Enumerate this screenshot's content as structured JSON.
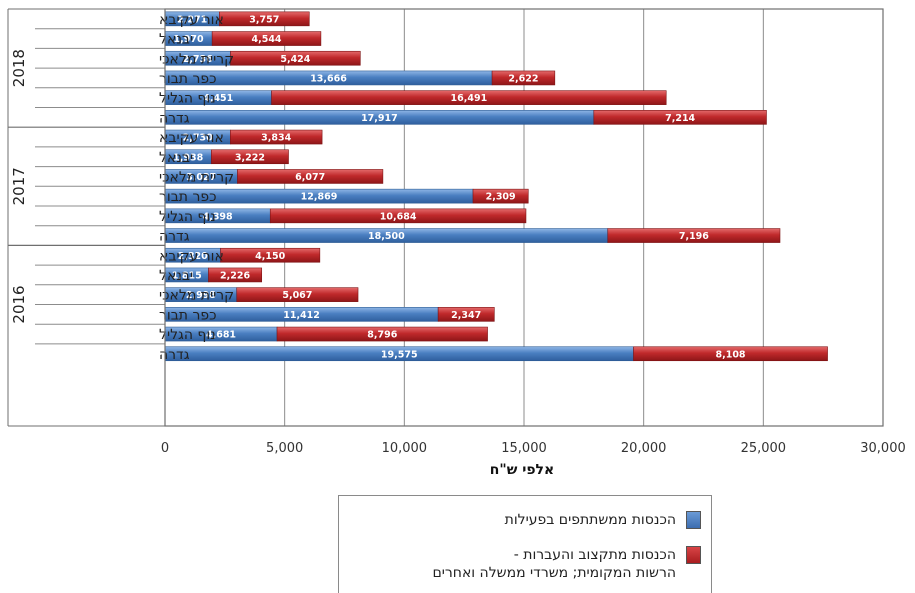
{
  "chart_data": {
    "type": "bar",
    "orientation": "horizontal",
    "stacked": true,
    "xlabel": "אלפי ש\"ח",
    "xlim": [
      0,
      30000
    ],
    "xticks": [
      "0",
      "5,000",
      "10,000",
      "15,000",
      "20,000",
      "25,000",
      "30,000"
    ],
    "grid": true,
    "legend_position": "bottom",
    "colors": {
      "participants": "#4a7fc1",
      "budget": "#c0292b"
    },
    "groups": [
      {
        "year": "2018",
        "rows": [
          {
            "label": "אור עקיבא",
            "participants": 2271,
            "budget": 3757,
            "participants_label": "2,271",
            "budget_label": "3,757"
          },
          {
            "label": "יבנאל",
            "participants": 1970,
            "budget": 4544,
            "participants_label": "1,970",
            "budget_label": "4,544"
          },
          {
            "label": "קריית מלאכי",
            "participants": 2736,
            "budget": 5424,
            "participants_label": "2,736",
            "budget_label": "5,424"
          },
          {
            "label": "כפר תבור",
            "participants": 13666,
            "budget": 2622,
            "participants_label": "13,666",
            "budget_label": "2,622"
          },
          {
            "label": "נוף הגליל",
            "participants": 4451,
            "budget": 16491,
            "participants_label": "4,451",
            "budget_label": "16,491"
          },
          {
            "label": "גדרה",
            "participants": 17917,
            "budget": 7214,
            "participants_label": "17,917",
            "budget_label": "7,214"
          }
        ]
      },
      {
        "year": "2017",
        "rows": [
          {
            "label": "אור עקיבא",
            "participants": 2730,
            "budget": 3834,
            "participants_label": "2,730",
            "budget_label": "3,834"
          },
          {
            "label": "יבנאל",
            "participants": 1938,
            "budget": 3222,
            "participants_label": "1,938",
            "budget_label": "3,222"
          },
          {
            "label": "קריית מלאכי",
            "participants": 3027,
            "budget": 6077,
            "participants_label": "3,027",
            "budget_label": "6,077"
          },
          {
            "label": "כפר תבור",
            "participants": 12869,
            "budget": 2309,
            "participants_label": "12,869",
            "budget_label": "2,309"
          },
          {
            "label": "נוף הגליל",
            "participants": 4398,
            "budget": 10684,
            "participants_label": "4,398",
            "budget_label": "10,684"
          },
          {
            "label": "גדרה",
            "participants": 18500,
            "budget": 7196,
            "participants_label": "18,500",
            "budget_label": "7,196"
          }
        ]
      },
      {
        "year": "2016",
        "rows": [
          {
            "label": "אור עקיבא",
            "participants": 2320,
            "budget": 4150,
            "participants_label": "2,320",
            "budget_label": "4,150"
          },
          {
            "label": "יבנאל",
            "participants": 1815,
            "budget": 2226,
            "participants_label": "1,815",
            "budget_label": "2,226"
          },
          {
            "label": "קריית מלאכי",
            "participants": 2998,
            "budget": 5067,
            "participants_label": "2,998",
            "budget_label": "5,067"
          },
          {
            "label": "כפר תבור",
            "participants": 11412,
            "budget": 2347,
            "participants_label": "11,412",
            "budget_label": "2,347"
          },
          {
            "label": "נוף הגליל",
            "participants": 4681,
            "budget": 8796,
            "participants_label": "4,681",
            "budget_label": "8,796"
          },
          {
            "label": "גדרה",
            "participants": 19575,
            "budget": 8108,
            "participants_label": "19,575",
            "budget_label": "8,108"
          }
        ]
      }
    ],
    "legend": {
      "participants": "הכנסות ממשתתפים בפעילות",
      "budget_line1": "הכנסות מתקצוב והעברות -",
      "budget_line2": "הרשות המקומית; משרדי ממשלה ואחרים"
    }
  }
}
